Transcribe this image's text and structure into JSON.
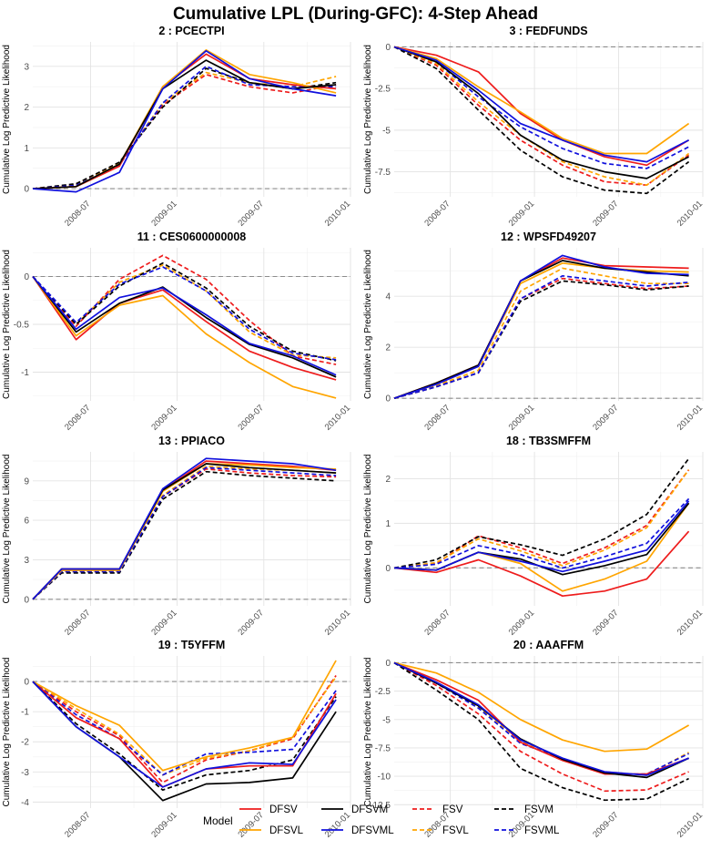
{
  "figure": {
    "title": "Cumulative LPL (During-GFC): 4-Step Ahead",
    "ylabel": "Cumulative Log Predictive Likelihood",
    "legend_title": "Model"
  },
  "x_ticks": [
    "2008-07",
    "2009-01",
    "2009-07",
    "2010-01"
  ],
  "series_styles": [
    {
      "name": "DFSV",
      "color": "#ee1c1c",
      "dash": "solid"
    },
    {
      "name": "DFSVL",
      "color": "#ffa500",
      "dash": "solid"
    },
    {
      "name": "DFSVM",
      "color": "#000000",
      "dash": "solid"
    },
    {
      "name": "DFSVML",
      "color": "#1010dd",
      "dash": "solid"
    },
    {
      "name": "FSV",
      "color": "#ee1c1c",
      "dash": "dashed"
    },
    {
      "name": "FSVL",
      "color": "#ffa500",
      "dash": "dashed"
    },
    {
      "name": "FSVM",
      "color": "#000000",
      "dash": "dashed"
    },
    {
      "name": "FSVML",
      "color": "#1010dd",
      "dash": "dashed"
    }
  ],
  "chart_data": [
    {
      "type": "line",
      "title": "2 : PCECTPI",
      "xlim": [
        "2008-03",
        "2010-01"
      ],
      "ylim": [
        -0.2,
        3.6
      ],
      "yticks": [
        0,
        1,
        2,
        3
      ],
      "x": [
        "2008-03",
        "2008-06",
        "2008-09",
        "2008-12",
        "2009-03",
        "2009-06",
        "2009-09",
        "2009-12"
      ],
      "series": [
        {
          "name": "DFSV",
          "values": [
            0,
            0.05,
            0.55,
            2.5,
            3.3,
            2.7,
            2.55,
            2.45
          ]
        },
        {
          "name": "DFSVL",
          "values": [
            0,
            0.05,
            0.6,
            2.5,
            3.4,
            2.8,
            2.6,
            2.35
          ]
        },
        {
          "name": "DFSVM",
          "values": [
            0,
            0.05,
            0.6,
            2.45,
            3.15,
            2.6,
            2.45,
            2.55
          ]
        },
        {
          "name": "DFSVML",
          "values": [
            0,
            -0.08,
            0.4,
            2.45,
            3.38,
            2.7,
            2.45,
            2.28
          ]
        },
        {
          "name": "FSV",
          "values": [
            0,
            0.1,
            0.6,
            2.05,
            2.8,
            2.5,
            2.35,
            2.55
          ]
        },
        {
          "name": "FSVL",
          "values": [
            0,
            0.1,
            0.62,
            2.1,
            2.85,
            2.6,
            2.5,
            2.75
          ]
        },
        {
          "name": "FSVM",
          "values": [
            0,
            0.12,
            0.65,
            2.0,
            2.95,
            2.6,
            2.45,
            2.6
          ]
        },
        {
          "name": "FSVML",
          "values": [
            0,
            0.08,
            0.58,
            2.1,
            3.0,
            2.55,
            2.5,
            2.5
          ]
        }
      ]
    },
    {
      "type": "line",
      "title": "3 : FEDFUNDS",
      "xlim": [
        "2008-03",
        "2010-01"
      ],
      "ylim": [
        -9.0,
        0.3
      ],
      "yticks": [
        0,
        -2.5,
        -5,
        -7.5
      ],
      "x": [
        "2008-03",
        "2008-06",
        "2008-09",
        "2008-12",
        "2009-03",
        "2009-06",
        "2009-09",
        "2009-12"
      ],
      "series": [
        {
          "name": "DFSV",
          "values": [
            0,
            -0.5,
            -1.5,
            -4.0,
            -5.6,
            -6.6,
            -7.1,
            -5.6
          ]
        },
        {
          "name": "DFSVL",
          "values": [
            0,
            -0.7,
            -2.4,
            -3.9,
            -5.5,
            -6.4,
            -6.4,
            -4.6
          ]
        },
        {
          "name": "DFSVM",
          "values": [
            0,
            -0.9,
            -2.8,
            -5.3,
            -6.8,
            -7.5,
            -7.9,
            -6.6
          ]
        },
        {
          "name": "DFSVML",
          "values": [
            0,
            -0.8,
            -2.6,
            -4.6,
            -5.6,
            -6.5,
            -6.9,
            -5.6
          ]
        },
        {
          "name": "FSV",
          "values": [
            0,
            -1.1,
            -3.5,
            -5.6,
            -7.1,
            -8.1,
            -8.3,
            -6.5
          ]
        },
        {
          "name": "FSVL",
          "values": [
            0,
            -1.0,
            -3.3,
            -5.3,
            -6.9,
            -7.8,
            -8.3,
            -6.4
          ]
        },
        {
          "name": "FSVM",
          "values": [
            0,
            -1.3,
            -3.8,
            -6.2,
            -7.8,
            -8.6,
            -8.8,
            -6.9
          ]
        },
        {
          "name": "FSVML",
          "values": [
            0,
            -0.9,
            -3.0,
            -4.8,
            -6.1,
            -7.0,
            -7.3,
            -6.0
          ]
        }
      ]
    },
    {
      "type": "line",
      "title": "11 : CES0600000008",
      "xlim": [
        "2008-03",
        "2010-01"
      ],
      "ylim": [
        -1.3,
        0.3
      ],
      "yticks": [
        0,
        -0.5,
        -1.0
      ],
      "x": [
        "2008-03",
        "2008-06",
        "2008-09",
        "2008-12",
        "2009-03",
        "2009-06",
        "2009-09",
        "2009-12"
      ],
      "series": [
        {
          "name": "DFSV",
          "values": [
            0,
            -0.66,
            -0.28,
            -0.14,
            -0.47,
            -0.78,
            -0.95,
            -1.08
          ]
        },
        {
          "name": "DFSVL",
          "values": [
            0,
            -0.62,
            -0.3,
            -0.2,
            -0.6,
            -0.9,
            -1.15,
            -1.27
          ]
        },
        {
          "name": "DFSVM",
          "values": [
            0,
            -0.58,
            -0.28,
            -0.11,
            -0.43,
            -0.71,
            -0.85,
            -1.05
          ]
        },
        {
          "name": "DFSVML",
          "values": [
            0,
            -0.55,
            -0.22,
            -0.12,
            -0.4,
            -0.7,
            -0.83,
            -1.03
          ]
        },
        {
          "name": "FSV",
          "values": [
            0,
            -0.52,
            -0.03,
            0.22,
            -0.03,
            -0.46,
            -0.83,
            -0.92
          ]
        },
        {
          "name": "FSVL",
          "values": [
            0,
            -0.5,
            -0.06,
            0.12,
            -0.15,
            -0.58,
            -0.82,
            -0.85
          ]
        },
        {
          "name": "FSVM",
          "values": [
            0,
            -0.5,
            -0.1,
            0.14,
            -0.12,
            -0.52,
            -0.78,
            -0.88
          ]
        },
        {
          "name": "FSVML",
          "values": [
            0,
            -0.48,
            -0.08,
            0.1,
            -0.15,
            -0.55,
            -0.8,
            -0.87
          ]
        }
      ]
    },
    {
      "type": "line",
      "title": "12 : WPSFD49207",
      "xlim": [
        "2008-03",
        "2010-01"
      ],
      "ylim": [
        -0.1,
        5.9
      ],
      "yticks": [
        0,
        2,
        4
      ],
      "x": [
        "2008-03",
        "2008-06",
        "2008-09",
        "2008-12",
        "2009-03",
        "2009-06",
        "2009-09",
        "2009-12"
      ],
      "series": [
        {
          "name": "DFSV",
          "values": [
            0,
            0.6,
            1.3,
            4.6,
            5.5,
            5.2,
            5.15,
            5.1
          ]
        },
        {
          "name": "DFSVL",
          "values": [
            0,
            0.55,
            1.25,
            4.5,
            5.3,
            5.1,
            5.0,
            4.95
          ]
        },
        {
          "name": "DFSVM",
          "values": [
            0,
            0.6,
            1.3,
            4.6,
            5.4,
            5.1,
            4.95,
            4.8
          ]
        },
        {
          "name": "DFSVML",
          "values": [
            0,
            0.55,
            1.25,
            4.6,
            5.6,
            5.15,
            4.9,
            4.85
          ]
        },
        {
          "name": "FSV",
          "values": [
            0,
            0.45,
            1.0,
            3.9,
            4.7,
            4.5,
            4.3,
            4.4
          ]
        },
        {
          "name": "FSVL",
          "values": [
            0,
            0.5,
            1.1,
            4.2,
            5.1,
            4.8,
            4.5,
            4.5
          ]
        },
        {
          "name": "FSVM",
          "values": [
            0,
            0.45,
            1.0,
            3.8,
            4.6,
            4.45,
            4.25,
            4.4
          ]
        },
        {
          "name": "FSVML",
          "values": [
            0,
            0.45,
            1.0,
            3.9,
            4.8,
            4.6,
            4.4,
            4.55
          ]
        }
      ]
    },
    {
      "type": "line",
      "title": "13 : PPIACO",
      "xlim": [
        "2008-03",
        "2010-01"
      ],
      "ylim": [
        -0.5,
        11.2
      ],
      "yticks": [
        0,
        3,
        6,
        9
      ],
      "x": [
        "2008-03",
        "2008-05",
        "2008-09",
        "2008-12",
        "2009-03",
        "2009-06",
        "2009-09",
        "2009-12"
      ],
      "series": [
        {
          "name": "DFSV",
          "values": [
            0,
            2.3,
            2.3,
            8.3,
            10.5,
            10.3,
            10.1,
            9.8
          ]
        },
        {
          "name": "DFSVL",
          "values": [
            0,
            2.2,
            2.2,
            8.2,
            10.3,
            10.2,
            10.0,
            9.9
          ]
        },
        {
          "name": "DFSVM",
          "values": [
            0,
            2.3,
            2.3,
            8.3,
            10.3,
            10.0,
            9.8,
            9.6
          ]
        },
        {
          "name": "DFSVML",
          "values": [
            0,
            2.3,
            2.3,
            8.4,
            10.7,
            10.5,
            10.3,
            9.8
          ]
        },
        {
          "name": "FSV",
          "values": [
            0,
            2.1,
            2.1,
            7.8,
            9.9,
            9.6,
            9.4,
            9.3
          ]
        },
        {
          "name": "FSVL",
          "values": [
            0,
            2.1,
            2.1,
            7.9,
            10.1,
            9.9,
            9.8,
            9.6
          ]
        },
        {
          "name": "FSVM",
          "values": [
            0,
            2.0,
            2.0,
            7.6,
            9.7,
            9.4,
            9.2,
            9.0
          ]
        },
        {
          "name": "FSVML",
          "values": [
            0,
            2.1,
            2.1,
            7.8,
            10.0,
            9.8,
            9.6,
            9.4
          ]
        }
      ]
    },
    {
      "type": "line",
      "title": "18 : TB3SMFFM",
      "xlim": [
        "2008-03",
        "2010-01"
      ],
      "ylim": [
        -0.85,
        2.6
      ],
      "yticks": [
        0,
        1,
        2
      ],
      "x": [
        "2008-03",
        "2008-06",
        "2008-09",
        "2008-12",
        "2009-03",
        "2009-06",
        "2009-09",
        "2009-12"
      ],
      "series": [
        {
          "name": "DFSV",
          "values": [
            0,
            -0.1,
            0.18,
            -0.18,
            -0.63,
            -0.52,
            -0.25,
            0.82
          ]
        },
        {
          "name": "DFSVL",
          "values": [
            0,
            -0.05,
            0.35,
            0.1,
            -0.52,
            -0.25,
            0.15,
            1.45
          ]
        },
        {
          "name": "DFSVM",
          "values": [
            0,
            -0.05,
            0.35,
            0.2,
            -0.15,
            0.05,
            0.3,
            1.45
          ]
        },
        {
          "name": "DFSVML",
          "values": [
            0,
            -0.05,
            0.35,
            0.15,
            -0.08,
            0.15,
            0.4,
            1.5
          ]
        },
        {
          "name": "FSV",
          "values": [
            0,
            0.1,
            0.72,
            0.45,
            0.1,
            0.45,
            0.95,
            2.2
          ]
        },
        {
          "name": "FSVL",
          "values": [
            0,
            0.12,
            0.65,
            0.38,
            0.05,
            0.4,
            0.9,
            2.2
          ]
        },
        {
          "name": "FSVM",
          "values": [
            0,
            0.18,
            0.7,
            0.52,
            0.28,
            0.65,
            1.2,
            2.45
          ]
        },
        {
          "name": "FSVML",
          "values": [
            0,
            0.08,
            0.5,
            0.3,
            0.0,
            0.25,
            0.55,
            1.55
          ]
        }
      ]
    },
    {
      "type": "line",
      "title": "19 : T5YFFM",
      "xlim": [
        "2008-03",
        "2010-01"
      ],
      "ylim": [
        -4.2,
        0.85
      ],
      "yticks": [
        0,
        -1,
        -2,
        -3,
        -4
      ],
      "x": [
        "2008-03",
        "2008-06",
        "2008-09",
        "2008-12",
        "2009-03",
        "2009-06",
        "2009-09",
        "2009-12"
      ],
      "series": [
        {
          "name": "DFSV",
          "values": [
            0,
            -1.2,
            -1.9,
            -3.5,
            -2.9,
            -2.8,
            -2.8,
            -0.4
          ]
        },
        {
          "name": "DFSVL",
          "values": [
            0,
            -0.8,
            -1.45,
            -2.95,
            -2.5,
            -2.2,
            -1.85,
            0.7
          ]
        },
        {
          "name": "DFSVM",
          "values": [
            0,
            -1.5,
            -2.5,
            -3.95,
            -3.4,
            -3.35,
            -3.2,
            -1.0
          ]
        },
        {
          "name": "DFSVML",
          "values": [
            0,
            -1.5,
            -2.5,
            -3.5,
            -2.9,
            -2.7,
            -2.75,
            -0.6
          ]
        },
        {
          "name": "FSV",
          "values": [
            0,
            -1.0,
            -1.8,
            -3.35,
            -2.6,
            -2.3,
            -1.9,
            0.2
          ]
        },
        {
          "name": "FSVL",
          "values": [
            0,
            -0.9,
            -1.75,
            -3.1,
            -2.55,
            -2.3,
            -1.85,
            0.15
          ]
        },
        {
          "name": "FSVM",
          "values": [
            0,
            -1.4,
            -2.4,
            -3.6,
            -3.1,
            -2.95,
            -2.6,
            -0.5
          ]
        },
        {
          "name": "FSVML",
          "values": [
            0,
            -1.1,
            -1.9,
            -3.1,
            -2.4,
            -2.35,
            -2.25,
            -0.3
          ]
        }
      ]
    },
    {
      "type": "line",
      "title": "20 : AAAFFM",
      "xlim": [
        "2008-03",
        "2010-01"
      ],
      "ylim": [
        -12.8,
        0.6
      ],
      "yticks": [
        0,
        -2.5,
        -5,
        -7.5,
        -10,
        -12.5
      ],
      "x": [
        "2008-03",
        "2008-06",
        "2008-09",
        "2008-12",
        "2009-03",
        "2009-06",
        "2009-09",
        "2009-12"
      ],
      "series": [
        {
          "name": "DFSV",
          "values": [
            0,
            -1.5,
            -3.3,
            -7.0,
            -8.6,
            -9.8,
            -9.8,
            -8.4
          ]
        },
        {
          "name": "DFSVL",
          "values": [
            0,
            -0.9,
            -2.6,
            -5.0,
            -6.8,
            -7.8,
            -7.6,
            -5.5
          ]
        },
        {
          "name": "DFSVM",
          "values": [
            0,
            -1.8,
            -3.8,
            -6.7,
            -8.5,
            -9.7,
            -10.1,
            -8.4
          ]
        },
        {
          "name": "DFSVML",
          "values": [
            0,
            -1.7,
            -3.7,
            -6.8,
            -8.4,
            -9.6,
            -9.9,
            -8.4
          ]
        },
        {
          "name": "FSV",
          "values": [
            0,
            -2.0,
            -4.5,
            -7.8,
            -9.8,
            -11.3,
            -11.2,
            -9.6
          ]
        },
        {
          "name": "FSVL",
          "values": [
            0,
            -1.7,
            -3.9,
            -6.9,
            -8.6,
            -9.6,
            -9.9,
            -7.9
          ]
        },
        {
          "name": "FSVM",
          "values": [
            0,
            -2.4,
            -5.0,
            -9.3,
            -11.0,
            -12.1,
            -12.0,
            -10.2
          ]
        },
        {
          "name": "FSVML",
          "values": [
            0,
            -1.8,
            -4.0,
            -7.1,
            -8.4,
            -9.8,
            -9.8,
            -8.0
          ]
        }
      ]
    }
  ]
}
